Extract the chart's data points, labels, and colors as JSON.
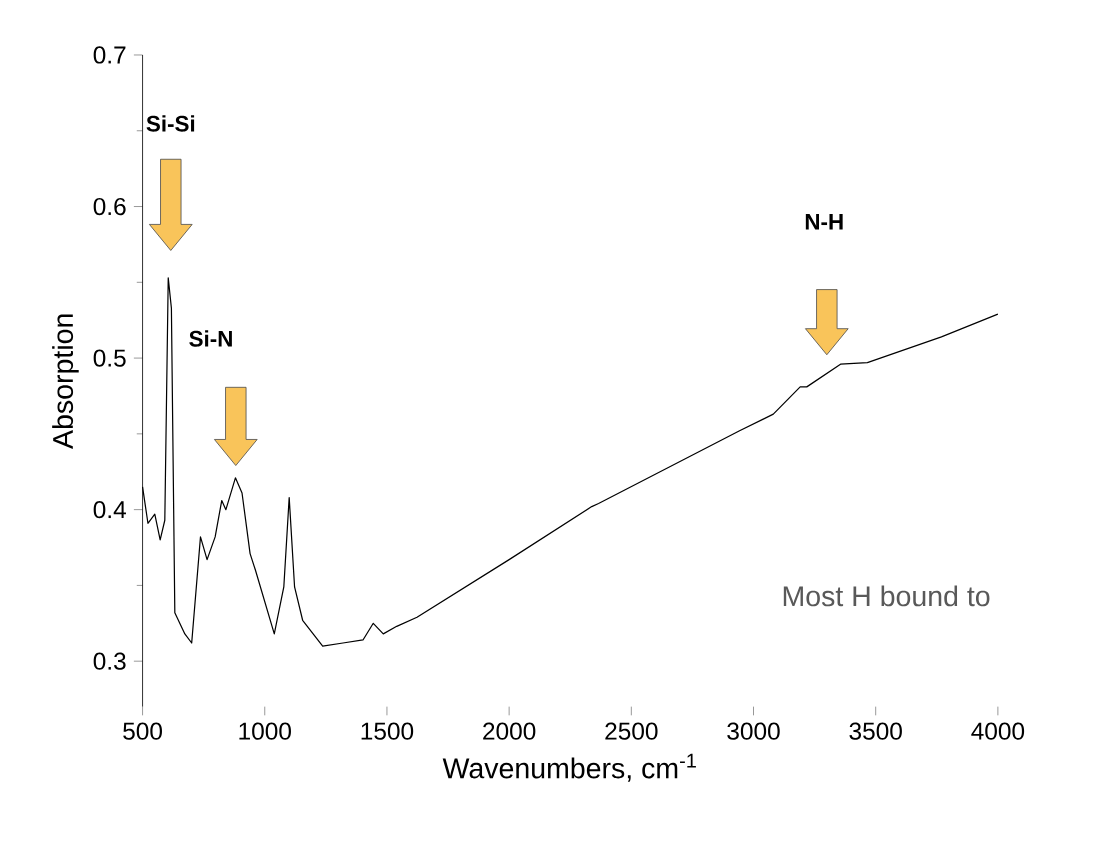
{
  "chart_data": {
    "type": "line",
    "xlabel": "Wavenumbers, cm$^{-1}$",
    "ylabel": "Absorption",
    "x": [
      500,
      522,
      550,
      572,
      591,
      605,
      618,
      632,
      673,
      701,
      737,
      764,
      797,
      824,
      841,
      880,
      907,
      940,
      962,
      1039,
      1078,
      1100,
      1122,
      1155,
      1237,
      1320,
      1402,
      1444,
      1485,
      1540,
      1623,
      2000,
      2338,
      2366,
      2943,
      3081,
      3191,
      3218,
      3356,
      3466,
      3769,
      4000
    ],
    "series": [
      {
        "color": "#000000",
        "values": [
          0.415,
          0.391,
          0.397,
          0.38,
          0.393,
          0.553,
          0.533,
          0.332,
          0.318,
          0.312,
          0.382,
          0.367,
          0.382,
          0.406,
          0.4,
          0.421,
          0.411,
          0.371,
          0.36,
          0.318,
          0.349,
          0.408,
          0.349,
          0.327,
          0.31,
          0.312,
          0.314,
          0.325,
          0.318,
          0.323,
          0.329,
          0.367,
          0.402,
          0.404,
          0.452,
          0.463,
          0.481,
          0.481,
          0.496,
          0.497,
          0.514,
          0.529
        ]
      }
    ],
    "xlim": [
      500,
      4000
    ],
    "ylim": [
      0.27,
      0.7
    ],
    "xticks": [
      500,
      1000,
      1500,
      2000,
      2500,
      3000,
      3500,
      4000
    ],
    "yticks": [
      0.3,
      0.4,
      0.5,
      0.6,
      0.7
    ],
    "annotations": [
      "**Si-Si**",
      "**Si-N**",
      "**N-H**",
      "Most H bound to"
    ],
    "grid": false,
    "marker": "none",
    "line_style": "solid"
  }
}
